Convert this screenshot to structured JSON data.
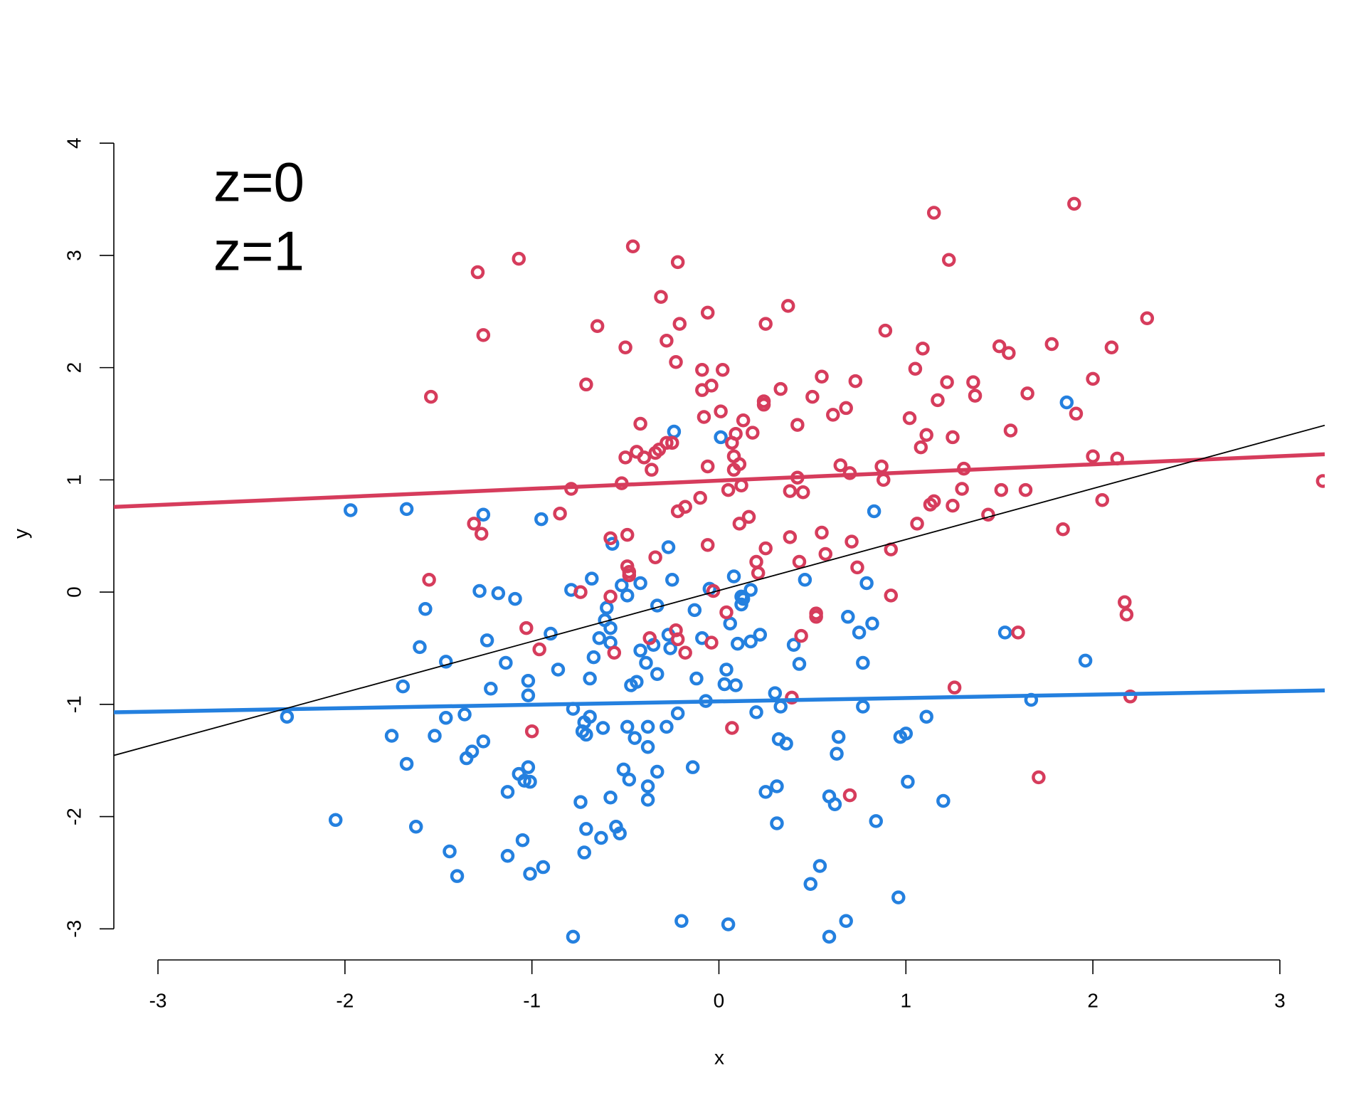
{
  "chart_data": {
    "type": "scatter",
    "x_label": "x",
    "y_label": "y",
    "xlim": [
      -3.236,
      3.24
    ],
    "ylim": [
      -3.277,
      4.28
    ],
    "xticks": [
      -3,
      -2,
      -1,
      0,
      1,
      2,
      3
    ],
    "yticks": [
      -3,
      -2,
      -1,
      0,
      1,
      2,
      3,
      4
    ],
    "legend": "top-left",
    "series": [
      {
        "name": "z=0",
        "color": "#2480df",
        "x": [
          -2.31,
          -1.97,
          -1.67,
          -1.26,
          -0.95,
          -2.05,
          -1.75,
          -1.67,
          -1.69,
          -1.6,
          -1.57,
          -1.46,
          -1.46,
          -1.52,
          -1.36,
          -1.35,
          -1.32,
          -1.26,
          -1.24,
          -1.28,
          -1.18,
          -1.09,
          -1.22,
          -1.14,
          -1.13,
          -1.13,
          -1.05,
          -1.07,
          -1.04,
          -1.02,
          -1.02,
          -1.02,
          -1.01,
          -1.01,
          -0.94,
          -1.44,
          -1.4,
          -1.62,
          -0.9,
          -0.86,
          -0.79,
          -0.68,
          -0.78,
          -0.72,
          -0.69,
          -0.73,
          -0.71,
          -0.74,
          -0.71,
          -0.72,
          -0.63,
          -0.55,
          -0.53,
          -0.58,
          -0.48,
          -0.38,
          -0.38,
          -0.51,
          -0.62,
          -0.49,
          -0.45,
          -0.38,
          -0.38,
          -0.33,
          -0.28,
          -0.22,
          -0.69,
          -0.67,
          -0.64,
          -0.6,
          -0.61,
          -0.58,
          -0.58,
          -0.57,
          -0.52,
          -0.49,
          -0.42,
          -0.47,
          -0.44,
          -0.42,
          -0.39,
          -0.35,
          -0.33,
          -0.33,
          -0.27,
          -0.26,
          -0.27,
          -0.25,
          -0.24,
          -0.13,
          -0.12,
          -0.09,
          -0.07,
          -0.05,
          -0.14,
          -0.2,
          -0.78,
          0.05,
          0.04,
          0.03,
          0.06,
          0.08,
          0.1,
          0.09,
          0.12,
          0.12,
          0.13,
          0.17,
          0.17,
          0.22,
          0.2,
          0.3,
          0.33,
          0.32,
          0.36,
          0.25,
          0.31,
          0.31,
          0.01,
          0.4,
          0.43,
          0.46,
          0.49,
          0.54,
          0.59,
          0.68,
          0.59,
          0.62,
          0.63,
          0.64,
          0.69,
          0.75,
          0.77,
          0.79,
          0.77,
          0.83,
          0.82,
          0.84,
          0.96,
          0.97,
          1.0,
          1.01,
          1.11,
          1.2,
          1.53,
          1.67,
          1.86,
          1.96
        ],
        "values": [
          -1.11,
          0.73,
          0.74,
          0.69,
          0.65,
          -2.03,
          -1.28,
          -1.53,
          -0.84,
          -0.49,
          -0.15,
          -0.62,
          -1.12,
          -1.28,
          -1.09,
          -1.48,
          -1.42,
          -1.33,
          -0.43,
          0.01,
          -0.01,
          -0.06,
          -0.86,
          -0.63,
          -1.78,
          -2.35,
          -2.21,
          -1.62,
          -1.68,
          -1.56,
          -0.79,
          -0.92,
          -1.69,
          -2.51,
          -2.45,
          -2.31,
          -2.53,
          -2.09,
          -0.37,
          -0.69,
          0.02,
          0.12,
          -1.04,
          -1.16,
          -1.11,
          -1.24,
          -1.27,
          -1.87,
          -2.11,
          -2.32,
          -2.19,
          -2.09,
          -2.15,
          -1.83,
          -1.67,
          -1.73,
          -1.85,
          -1.58,
          -1.21,
          -1.2,
          -1.3,
          -1.2,
          -1.38,
          -1.6,
          -1.2,
          -1.08,
          -0.77,
          -0.58,
          -0.41,
          -0.14,
          -0.25,
          -0.32,
          -0.45,
          0.43,
          0.06,
          -0.03,
          0.08,
          -0.83,
          -0.8,
          -0.52,
          -0.63,
          -0.47,
          -0.12,
          -0.73,
          -0.38,
          -0.5,
          0.4,
          0.11,
          1.43,
          -0.16,
          -0.77,
          -0.41,
          -0.97,
          0.03,
          -1.56,
          -2.93,
          -3.07,
          -2.96,
          -0.69,
          -0.82,
          -0.28,
          0.14,
          -0.46,
          -0.83,
          -0.04,
          -0.11,
          -0.06,
          0.02,
          -0.44,
          -0.38,
          -1.07,
          -0.9,
          -1.02,
          -1.31,
          -1.35,
          -1.78,
          -1.73,
          -2.06,
          1.38,
          -0.47,
          -0.64,
          0.11,
          -2.6,
          -2.44,
          -3.07,
          -2.93,
          -1.82,
          -1.89,
          -1.44,
          -1.29,
          -0.22,
          -0.36,
          -0.63,
          0.08,
          -1.02,
          0.72,
          -0.28,
          -2.04,
          -2.72,
          -1.29,
          -1.26,
          -1.69,
          -1.11,
          -1.86,
          -0.36,
          -0.96,
          1.69,
          -0.61
        ],
        "fit": {
          "x": [
            -3.236,
            3.24
          ],
          "values": [
            -1.071,
            -0.876
          ]
        }
      },
      {
        "name": "z=1",
        "color": "#d63c5c",
        "x": [
          -1.29,
          -1.07,
          -1.26,
          -1.54,
          -1.55,
          -1.31,
          -1.27,
          -1.03,
          -0.96,
          -1.0,
          -0.85,
          -0.79,
          -0.74,
          -0.71,
          -0.65,
          -0.58,
          -0.58,
          -0.56,
          -0.5,
          -0.49,
          -0.5,
          -0.52,
          -0.49,
          -0.48,
          -0.48,
          -0.46,
          -0.42,
          -0.44,
          -0.4,
          -0.36,
          -0.34,
          -0.32,
          -0.28,
          -0.25,
          -0.37,
          -0.34,
          -0.31,
          -0.28,
          -0.23,
          -0.22,
          -0.21,
          -0.23,
          -0.22,
          -0.18,
          -0.22,
          -0.18,
          -0.1,
          -0.09,
          -0.08,
          -0.09,
          -0.06,
          -0.06,
          -0.04,
          -0.06,
          -0.04,
          -0.03,
          0.01,
          0.02,
          0.04,
          0.05,
          0.07,
          0.07,
          0.08,
          0.08,
          0.09,
          0.11,
          0.11,
          0.13,
          0.16,
          0.18,
          0.12,
          0.2,
          0.21,
          0.24,
          0.24,
          0.25,
          0.25,
          0.33,
          0.37,
          0.38,
          0.39,
          0.38,
          0.42,
          0.42,
          0.43,
          0.44,
          0.45,
          0.5,
          0.52,
          0.52,
          0.55,
          0.55,
          0.57,
          0.61,
          0.65,
          0.68,
          0.7,
          0.71,
          0.7,
          0.73,
          0.74,
          0.88,
          0.89,
          0.87,
          0.92,
          0.92,
          1.02,
          1.05,
          1.06,
          1.08,
          1.09,
          1.11,
          1.13,
          1.15,
          1.15,
          1.17,
          1.22,
          1.23,
          1.25,
          1.25,
          1.26,
          1.3,
          1.31,
          1.36,
          1.37,
          1.44,
          1.5,
          1.55,
          1.51,
          1.56,
          1.6,
          1.65,
          1.64,
          1.71,
          1.78,
          1.84,
          1.9,
          1.91,
          2.0,
          2.0,
          2.05,
          2.1,
          2.13,
          2.17,
          2.18,
          2.2,
          2.29,
          3.23
        ],
        "values": [
          2.85,
          2.97,
          2.29,
          1.74,
          0.11,
          0.61,
          0.52,
          -0.32,
          -0.51,
          -1.24,
          0.7,
          0.92,
          0.0,
          1.85,
          2.37,
          0.48,
          -0.04,
          -0.54,
          2.18,
          0.51,
          1.2,
          0.97,
          0.23,
          0.18,
          0.15,
          3.08,
          1.5,
          1.25,
          1.2,
          1.09,
          1.24,
          1.27,
          1.33,
          1.33,
          -0.41,
          0.31,
          2.63,
          2.24,
          2.05,
          2.94,
          2.39,
          -0.34,
          -0.42,
          -0.54,
          0.72,
          0.76,
          0.84,
          1.8,
          1.56,
          1.98,
          2.49,
          1.12,
          1.84,
          0.42,
          -0.45,
          0.01,
          1.61,
          1.98,
          -0.18,
          0.91,
          -1.21,
          1.33,
          1.21,
          1.09,
          1.41,
          1.14,
          0.61,
          1.53,
          0.67,
          1.42,
          0.95,
          0.27,
          0.17,
          1.7,
          1.67,
          2.39,
          0.39,
          1.81,
          2.55,
          0.49,
          -0.94,
          0.9,
          1.49,
          1.02,
          0.27,
          -0.39,
          0.89,
          1.74,
          -0.19,
          -0.22,
          1.92,
          0.53,
          0.34,
          1.58,
          1.13,
          1.64,
          1.06,
          0.45,
          -1.81,
          1.88,
          0.22,
          1.0,
          2.33,
          1.12,
          0.38,
          -0.03,
          1.55,
          1.99,
          0.61,
          1.29,
          2.17,
          1.4,
          0.78,
          3.38,
          0.81,
          1.71,
          1.87,
          2.96,
          1.38,
          0.77,
          -0.85,
          0.92,
          1.1,
          1.87,
          1.75,
          0.69,
          2.19,
          2.13,
          0.91,
          1.44,
          -0.36,
          1.77,
          0.91,
          -1.65,
          2.21,
          0.56,
          3.46,
          1.59,
          1.9,
          1.21,
          0.82,
          2.18,
          1.19,
          -0.09,
          -0.2,
          -0.93,
          2.44,
          0.99
        ],
        "fit": {
          "x": [
            -3.236,
            3.24
          ],
          "values": [
            0.759,
            1.228
          ]
        }
      }
    ],
    "reference_line": {
      "color": "#000000",
      "x": [
        -3.236,
        3.24
      ],
      "values": [
        -1.455,
        1.486
      ]
    }
  }
}
